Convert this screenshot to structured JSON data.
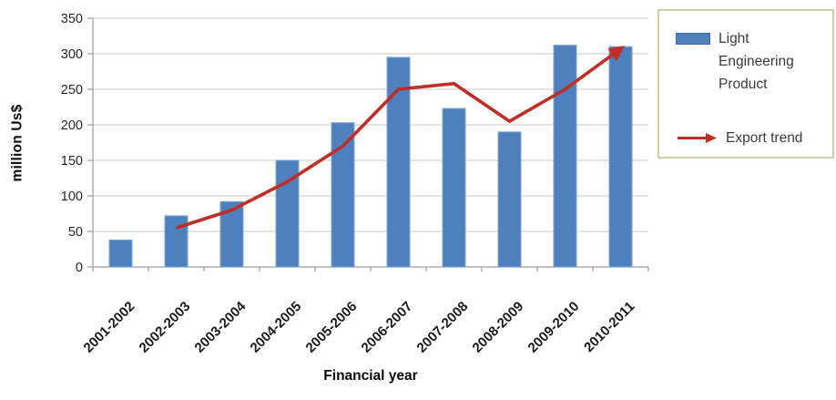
{
  "chart_data": {
    "type": "bar+line",
    "title": "",
    "categories": [
      "2001-2002",
      "2002-2003",
      "2003-2004",
      "2004-2005",
      "2005-2006",
      "2006-2007",
      "2007-2008",
      "2008-2009",
      "2009-2010",
      "2010-2011"
    ],
    "series": [
      {
        "name": "Light Engineering Product",
        "type": "bar",
        "color": "#4E80BD",
        "values": [
          38,
          72,
          92,
          150,
          203,
          295,
          223,
          190,
          312,
          310
        ]
      },
      {
        "name": "Export trend",
        "type": "line",
        "color": "#C02C26",
        "values": [
          null,
          55,
          80,
          120,
          170,
          250,
          258,
          205,
          250,
          307
        ]
      }
    ],
    "xlabel": "Financial year",
    "ylabel": "million Us$",
    "ylim": [
      0,
      350
    ],
    "ytick_step": 50,
    "yticks": [
      "0",
      "50",
      "100",
      "150",
      "200",
      "250",
      "300",
      "350"
    ],
    "grid": true,
    "legend_position": "top-right"
  },
  "colors": {
    "bar": "#4E80BD",
    "bar_edge": "#7FA5D2",
    "line": "#C02C26",
    "grid": "#C9C9C9",
    "axis": "#9B9B9B",
    "legend_border": "#C9D3A7",
    "tick_text": "#262626"
  },
  "icons": {
    "legend_bar_swatch": "bar-swatch-icon",
    "legend_arrow": "arrow-right-icon"
  }
}
